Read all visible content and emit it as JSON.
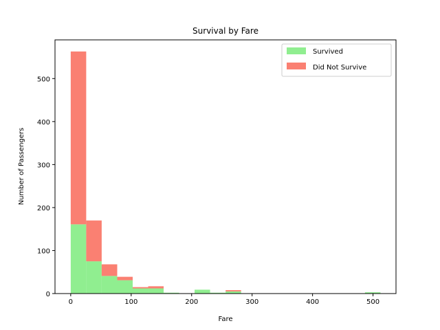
{
  "chart_data": {
    "type": "bar",
    "stacked": true,
    "title": "Survival by Fare",
    "xlabel": "Fare",
    "ylabel": "Number of Passengers",
    "xlim": [
      -26,
      538
    ],
    "ylim": [
      0,
      590
    ],
    "xticks": [
      0,
      100,
      200,
      300,
      400,
      500
    ],
    "yticks": [
      0,
      100,
      200,
      300,
      400,
      500
    ],
    "bin_edges": [
      0,
      25.6,
      51.2,
      76.9,
      102.5,
      128.1,
      153.7,
      179.3,
      204.9,
      230.5,
      256.2,
      281.8,
      307.4,
      333.0,
      358.6,
      384.2,
      409.8,
      435.5,
      461.1,
      486.7,
      512.3
    ],
    "series": [
      {
        "name": "Survived",
        "color": "#90ee90",
        "values": [
          161,
          75,
          41,
          31,
          12,
          12,
          2,
          0,
          9,
          2,
          5,
          0,
          0,
          0,
          0,
          0,
          0,
          0,
          0,
          3
        ]
      },
      {
        "name": "Did Not Survive",
        "color": "#fa8072",
        "values": [
          402,
          95,
          27,
          8,
          3,
          5,
          0,
          0,
          0,
          0,
          3,
          0,
          0,
          0,
          0,
          0,
          0,
          0,
          0,
          0
        ]
      }
    ],
    "legend": {
      "placement": "upper-right",
      "entries": [
        "Survived",
        "Did Not Survive"
      ]
    },
    "grid": false
  }
}
